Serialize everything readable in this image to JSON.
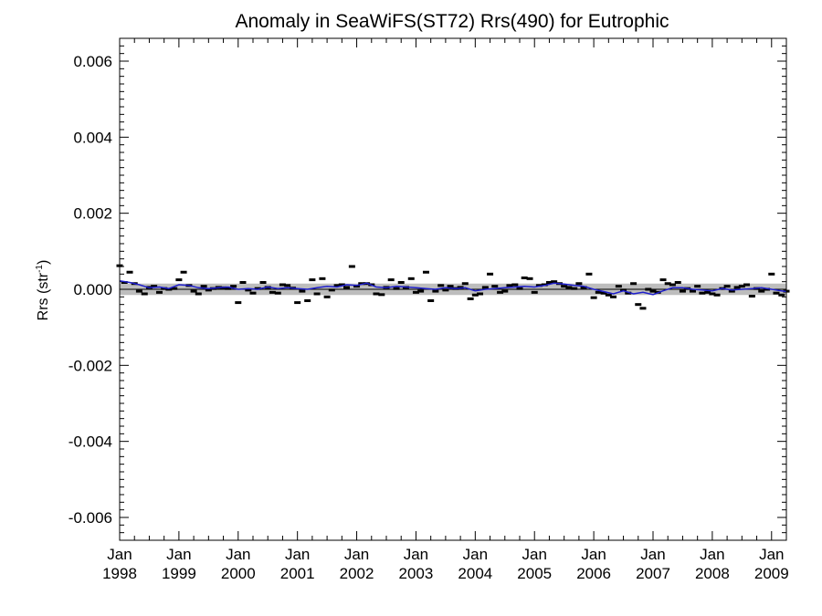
{
  "chart_data": {
    "type": "scatter",
    "title": "Anomaly in SeaWiFS(ST72) Rrs(490) for Eutrophic",
    "xlabel": "",
    "ylabel": {
      "main": "Rrs (str",
      "sup": "-1",
      "close": ")"
    },
    "ylim": [
      -0.0066,
      0.0066
    ],
    "xlim": [
      1998.0,
      2009.25
    ],
    "y_ticks": [
      -0.006,
      -0.004,
      -0.002,
      0.0,
      0.002,
      0.004,
      0.006
    ],
    "y_tick_labels": [
      "-0.006",
      "-0.004",
      "-0.002",
      "0.000",
      "0.002",
      "0.004",
      "0.006"
    ],
    "x_ticks": [
      1998,
      1999,
      2000,
      2001,
      2002,
      2003,
      2004,
      2005,
      2006,
      2007,
      2008,
      2009
    ],
    "x_tick_labels": [
      {
        "month": "Jan",
        "year": "1998"
      },
      {
        "month": "Jan",
        "year": "1999"
      },
      {
        "month": "Jan",
        "year": "2000"
      },
      {
        "month": "Jan",
        "year": "2001"
      },
      {
        "month": "Jan",
        "year": "2002"
      },
      {
        "month": "Jan",
        "year": "2003"
      },
      {
        "month": "Jan",
        "year": "2004"
      },
      {
        "month": "Jan",
        "year": "2005"
      },
      {
        "month": "Jan",
        "year": "2006"
      },
      {
        "month": "Jan",
        "year": "2007"
      },
      {
        "month": "Jan",
        "year": "2008"
      },
      {
        "month": "Jan",
        "year": "2009"
      }
    ],
    "band": {
      "low": -0.00015,
      "high": 0.00015,
      "color": "#bdbdbd"
    },
    "zero_line": true,
    "series": [
      {
        "kind": "points",
        "color": "#000000",
        "x": [
          1998.0,
          1998.08,
          1998.17,
          1998.25,
          1998.33,
          1998.42,
          1998.5,
          1998.58,
          1998.67,
          1998.75,
          1998.83,
          1998.92,
          1999.0,
          1999.08,
          1999.17,
          1999.25,
          1999.33,
          1999.42,
          1999.5,
          1999.58,
          1999.67,
          1999.75,
          1999.83,
          1999.92,
          2000.0,
          2000.08,
          2000.17,
          2000.25,
          2000.33,
          2000.42,
          2000.5,
          2000.58,
          2000.67,
          2000.75,
          2000.83,
          2000.92,
          2001.0,
          2001.08,
          2001.17,
          2001.25,
          2001.33,
          2001.42,
          2001.5,
          2001.58,
          2001.67,
          2001.75,
          2001.83,
          2001.92,
          2002.0,
          2002.08,
          2002.17,
          2002.25,
          2002.33,
          2002.42,
          2002.5,
          2002.58,
          2002.67,
          2002.75,
          2002.83,
          2002.92,
          2003.0,
          2003.08,
          2003.17,
          2003.25,
          2003.33,
          2003.42,
          2003.5,
          2003.58,
          2003.67,
          2003.75,
          2003.83,
          2003.92,
          2004.0,
          2004.08,
          2004.17,
          2004.25,
          2004.33,
          2004.42,
          2004.5,
          2004.58,
          2004.67,
          2004.75,
          2004.83,
          2004.92,
          2005.0,
          2005.08,
          2005.17,
          2005.25,
          2005.33,
          2005.42,
          2005.5,
          2005.58,
          2005.67,
          2005.75,
          2005.83,
          2005.92,
          2006.0,
          2006.08,
          2006.17,
          2006.25,
          2006.33,
          2006.42,
          2006.5,
          2006.58,
          2006.67,
          2006.75,
          2006.83,
          2006.92,
          2007.0,
          2007.08,
          2007.17,
          2007.25,
          2007.33,
          2007.42,
          2007.5,
          2007.58,
          2007.67,
          2007.75,
          2007.83,
          2007.92,
          2008.0,
          2008.08,
          2008.17,
          2008.25,
          2008.33,
          2008.42,
          2008.5,
          2008.58,
          2008.67,
          2008.75,
          2008.83,
          2008.92,
          2009.0,
          2009.08,
          2009.17,
          2009.25
        ],
        "y": [
          0.00062,
          0.00018,
          0.00045,
          0.00015,
          -5e-05,
          -0.00012,
          5e-05,
          8e-05,
          -8e-05,
          2e-05,
          0.0,
          2e-05,
          0.00025,
          0.00045,
          0.0001,
          -5e-05,
          -0.00012,
          8e-05,
          -2e-05,
          2e-05,
          5e-05,
          4e-05,
          2e-05,
          8e-05,
          -0.00035,
          0.00018,
          -2e-05,
          -0.0001,
          2e-05,
          0.00018,
          5e-05,
          -8e-05,
          -0.0001,
          0.00012,
          0.0001,
          3e-05,
          -0.00035,
          -5e-05,
          -0.0003,
          0.00025,
          -0.00012,
          0.00028,
          -0.0002,
          -2e-05,
          0.0001,
          0.00012,
          5e-05,
          0.0006,
          8e-05,
          0.00015,
          0.00015,
          0.00012,
          -0.00012,
          -0.00014,
          5e-05,
          0.00025,
          2e-05,
          0.00018,
          5e-05,
          0.00028,
          -8e-05,
          -5e-05,
          0.00045,
          -0.0003,
          -5e-05,
          0.0001,
          -2e-05,
          8e-05,
          2e-05,
          5e-05,
          0.00015,
          -0.00025,
          -0.00015,
          -0.00012,
          5e-05,
          0.0004,
          8e-05,
          -8e-05,
          -5e-05,
          0.0001,
          0.00012,
          2e-05,
          0.0003,
          0.00028,
          -8e-05,
          0.0001,
          0.00012,
          0.00018,
          0.0002,
          0.00015,
          8e-05,
          5e-05,
          2e-05,
          0.00015,
          5e-05,
          0.0004,
          -0.00022,
          -8e-05,
          -0.0001,
          -0.00015,
          -0.0002,
          8e-05,
          -2e-05,
          -0.0001,
          0.00015,
          -0.0004,
          -0.0005,
          0.0,
          -5e-05,
          -8e-05,
          0.00025,
          0.00015,
          0.00012,
          0.00018,
          -5e-05,
          2e-05,
          -5e-05,
          8e-05,
          -0.0001,
          -8e-05,
          -0.00012,
          -0.00015,
          2e-05,
          8e-05,
          -5e-05,
          5e-05,
          8e-05,
          0.00012,
          -0.00018,
          2e-05,
          -5e-05,
          0.0,
          0.0004,
          -0.0001,
          -0.00015,
          -5e-05
        ]
      },
      {
        "kind": "line",
        "color": "#1f1fcc",
        "x": [
          1998.0,
          1998.17,
          1998.33,
          1998.5,
          1998.67,
          1998.83,
          1999.0,
          1999.17,
          1999.33,
          1999.5,
          1999.67,
          1999.83,
          2000.0,
          2000.17,
          2000.33,
          2000.5,
          2000.67,
          2000.83,
          2001.0,
          2001.17,
          2001.33,
          2001.5,
          2001.67,
          2001.83,
          2002.0,
          2002.17,
          2002.33,
          2002.5,
          2002.67,
          2002.83,
          2003.0,
          2003.17,
          2003.33,
          2003.5,
          2003.67,
          2003.83,
          2004.0,
          2004.17,
          2004.33,
          2004.5,
          2004.67,
          2004.83,
          2005.0,
          2005.17,
          2005.33,
          2005.5,
          2005.67,
          2005.83,
          2006.0,
          2006.17,
          2006.33,
          2006.5,
          2006.67,
          2006.83,
          2007.0,
          2007.17,
          2007.33,
          2007.5,
          2007.67,
          2007.83,
          2008.0,
          2008.17,
          2008.33,
          2008.5,
          2008.67,
          2008.83,
          2009.0,
          2009.17,
          2009.25
        ],
        "y": [
          0.00022,
          0.00018,
          0.00012,
          4e-05,
          6e-05,
          2e-05,
          0.00012,
          0.0001,
          4e-05,
          2e-05,
          4e-05,
          6e-05,
          0.0,
          2e-05,
          0.0,
          6e-05,
          2e-05,
          4e-05,
          2e-05,
          0.0,
          4e-05,
          8e-05,
          6e-05,
          0.00012,
          0.0001,
          0.00016,
          6e-05,
          4e-05,
          8e-05,
          6e-05,
          4e-05,
          2e-05,
          0.0,
          4e-05,
          2e-05,
          4e-05,
          -4e-05,
          0.0,
          2e-05,
          4e-05,
          6e-05,
          8e-05,
          6e-05,
          0.0001,
          0.00016,
          0.00014,
          0.0001,
          8e-05,
          0.0,
          -6e-05,
          -0.00012,
          -4e-05,
          -0.00012,
          -8e-05,
          -0.00014,
          -4e-05,
          4e-05,
          4e-05,
          0.0,
          -2e-05,
          -4e-05,
          2e-05,
          -2e-05,
          0.0,
          2e-05,
          4e-05,
          0.0,
          -4e-05,
          -6e-05
        ]
      }
    ]
  }
}
